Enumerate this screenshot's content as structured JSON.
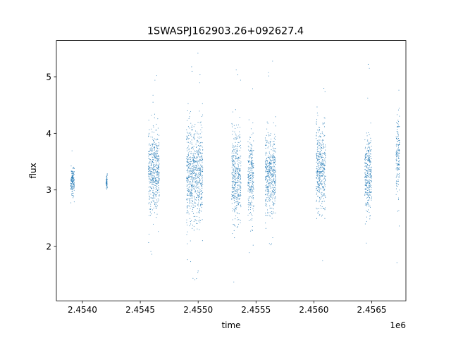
{
  "chart_data": {
    "type": "scatter",
    "title": "1SWASPJ162903.26+092627.4",
    "xlabel": "time",
    "ylabel": "flux",
    "x_offset_label": "1e6",
    "xlim": [
      2453775,
      2456795
    ],
    "ylim": [
      1.04,
      5.64
    ],
    "x_ticks": [
      {
        "value": 2454000,
        "label": "2.4540"
      },
      {
        "value": 2454500,
        "label": "2.4545"
      },
      {
        "value": 2455000,
        "label": "2.4550"
      },
      {
        "value": 2455500,
        "label": "2.4555"
      },
      {
        "value": 2456000,
        "label": "2.4560"
      },
      {
        "value": 2456500,
        "label": "2.4565"
      }
    ],
    "y_ticks": [
      {
        "value": 2,
        "label": "2"
      },
      {
        "value": 3,
        "label": "3"
      },
      {
        "value": 4,
        "label": "4"
      },
      {
        "value": 5,
        "label": "5"
      }
    ],
    "grid": false,
    "legend": "none",
    "color": "#1f77b4",
    "marker": "point",
    "observing_seasons": [
      {
        "time_start": 2453900,
        "time_end": 2453930,
        "flux_median": 3.15,
        "flux_min": 2.6,
        "flux_max": 3.75
      },
      {
        "time_start": 2454205,
        "time_end": 2454215,
        "flux_median": 3.15,
        "flux_min": 2.75,
        "flux_max": 3.4
      },
      {
        "time_start": 2454570,
        "time_end": 2454665,
        "flux_median": 3.35,
        "flux_min": 1.85,
        "flux_max": 5.4
      },
      {
        "time_start": 2454900,
        "time_end": 2455040,
        "flux_median": 3.3,
        "flux_min": 1.25,
        "flux_max": 5.45
      },
      {
        "time_start": 2455290,
        "time_end": 2455370,
        "flux_median": 3.3,
        "flux_min": 1.3,
        "flux_max": 5.4
      },
      {
        "time_start": 2455430,
        "time_end": 2455480,
        "flux_median": 3.2,
        "flux_min": 1.45,
        "flux_max": 5.3
      },
      {
        "time_start": 2455580,
        "time_end": 2455670,
        "flux_median": 3.3,
        "flux_min": 1.9,
        "flux_max": 5.3
      },
      {
        "time_start": 2456020,
        "time_end": 2456100,
        "flux_median": 3.4,
        "flux_min": 1.5,
        "flux_max": 5.15
      },
      {
        "time_start": 2456440,
        "time_end": 2456500,
        "flux_median": 3.3,
        "flux_min": 2.0,
        "flux_max": 5.45
      },
      {
        "time_start": 2456710,
        "time_end": 2456740,
        "flux_median": 3.6,
        "flux_min": 1.25,
        "flux_max": 5.3
      }
    ]
  }
}
